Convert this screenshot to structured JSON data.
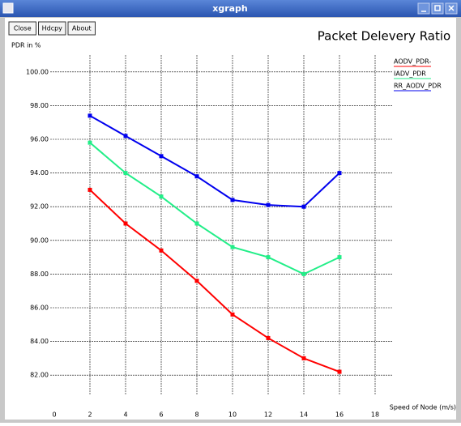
{
  "window": {
    "title": "xgraph",
    "buttons": [
      "Close",
      "Hdcpy",
      "About"
    ]
  },
  "chart_data": {
    "type": "line",
    "title": "Packet Delevery Ratio",
    "y_label": "PDR in %",
    "x_label": "Speed of Node (m/s)",
    "x": [
      2,
      4,
      6,
      8,
      10,
      12,
      14,
      16
    ],
    "series": [
      {
        "name": "AODV_PDR-",
        "color": "#ff0000",
        "values": [
          93.0,
          91.0,
          89.4,
          87.6,
          85.6,
          84.2,
          83.0,
          82.2
        ]
      },
      {
        "name": "IADV_PDR",
        "color": "#22ee88",
        "values": [
          95.8,
          94.0,
          92.6,
          91.0,
          89.6,
          89.0,
          88.0,
          89.0
        ]
      },
      {
        "name": "RR_AODV_PDR",
        "color": "#0000ee",
        "values": [
          97.4,
          96.2,
          95.0,
          93.8,
          92.4,
          92.1,
          92.0,
          94.0
        ]
      }
    ],
    "xlim": [
      0,
      19
    ],
    "ylim": [
      81,
      101
    ],
    "xticks": [
      0,
      2,
      4,
      6,
      8,
      10,
      12,
      14,
      16,
      18
    ],
    "yticks": [
      {
        "value": 82,
        "label": "82.00"
      },
      {
        "value": 84,
        "label": "84.00"
      },
      {
        "value": 86,
        "label": "86.00"
      },
      {
        "value": 88,
        "label": "88.00"
      },
      {
        "value": 90,
        "label": "90.00"
      },
      {
        "value": 92,
        "label": "92.00"
      },
      {
        "value": 94,
        "label": "94.00"
      },
      {
        "value": 96,
        "label": "96.00"
      },
      {
        "value": 98,
        "label": "98.00"
      },
      {
        "value": 100,
        "label": "100.00"
      }
    ],
    "grid": true,
    "legend": "top-right"
  }
}
